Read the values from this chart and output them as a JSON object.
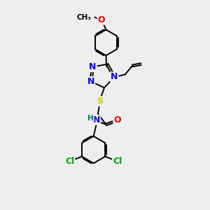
{
  "bg_color": "#eeeeee",
  "atom_colors": {
    "C": "#000000",
    "N": "#0000ee",
    "O": "#ee0000",
    "S": "#cccc00",
    "Cl": "#00aa00",
    "H": "#007070"
  },
  "line_color": "#000000",
  "line_width": 1.4,
  "font_size": 9,
  "figsize": [
    3.0,
    3.0
  ],
  "dpi": 100
}
